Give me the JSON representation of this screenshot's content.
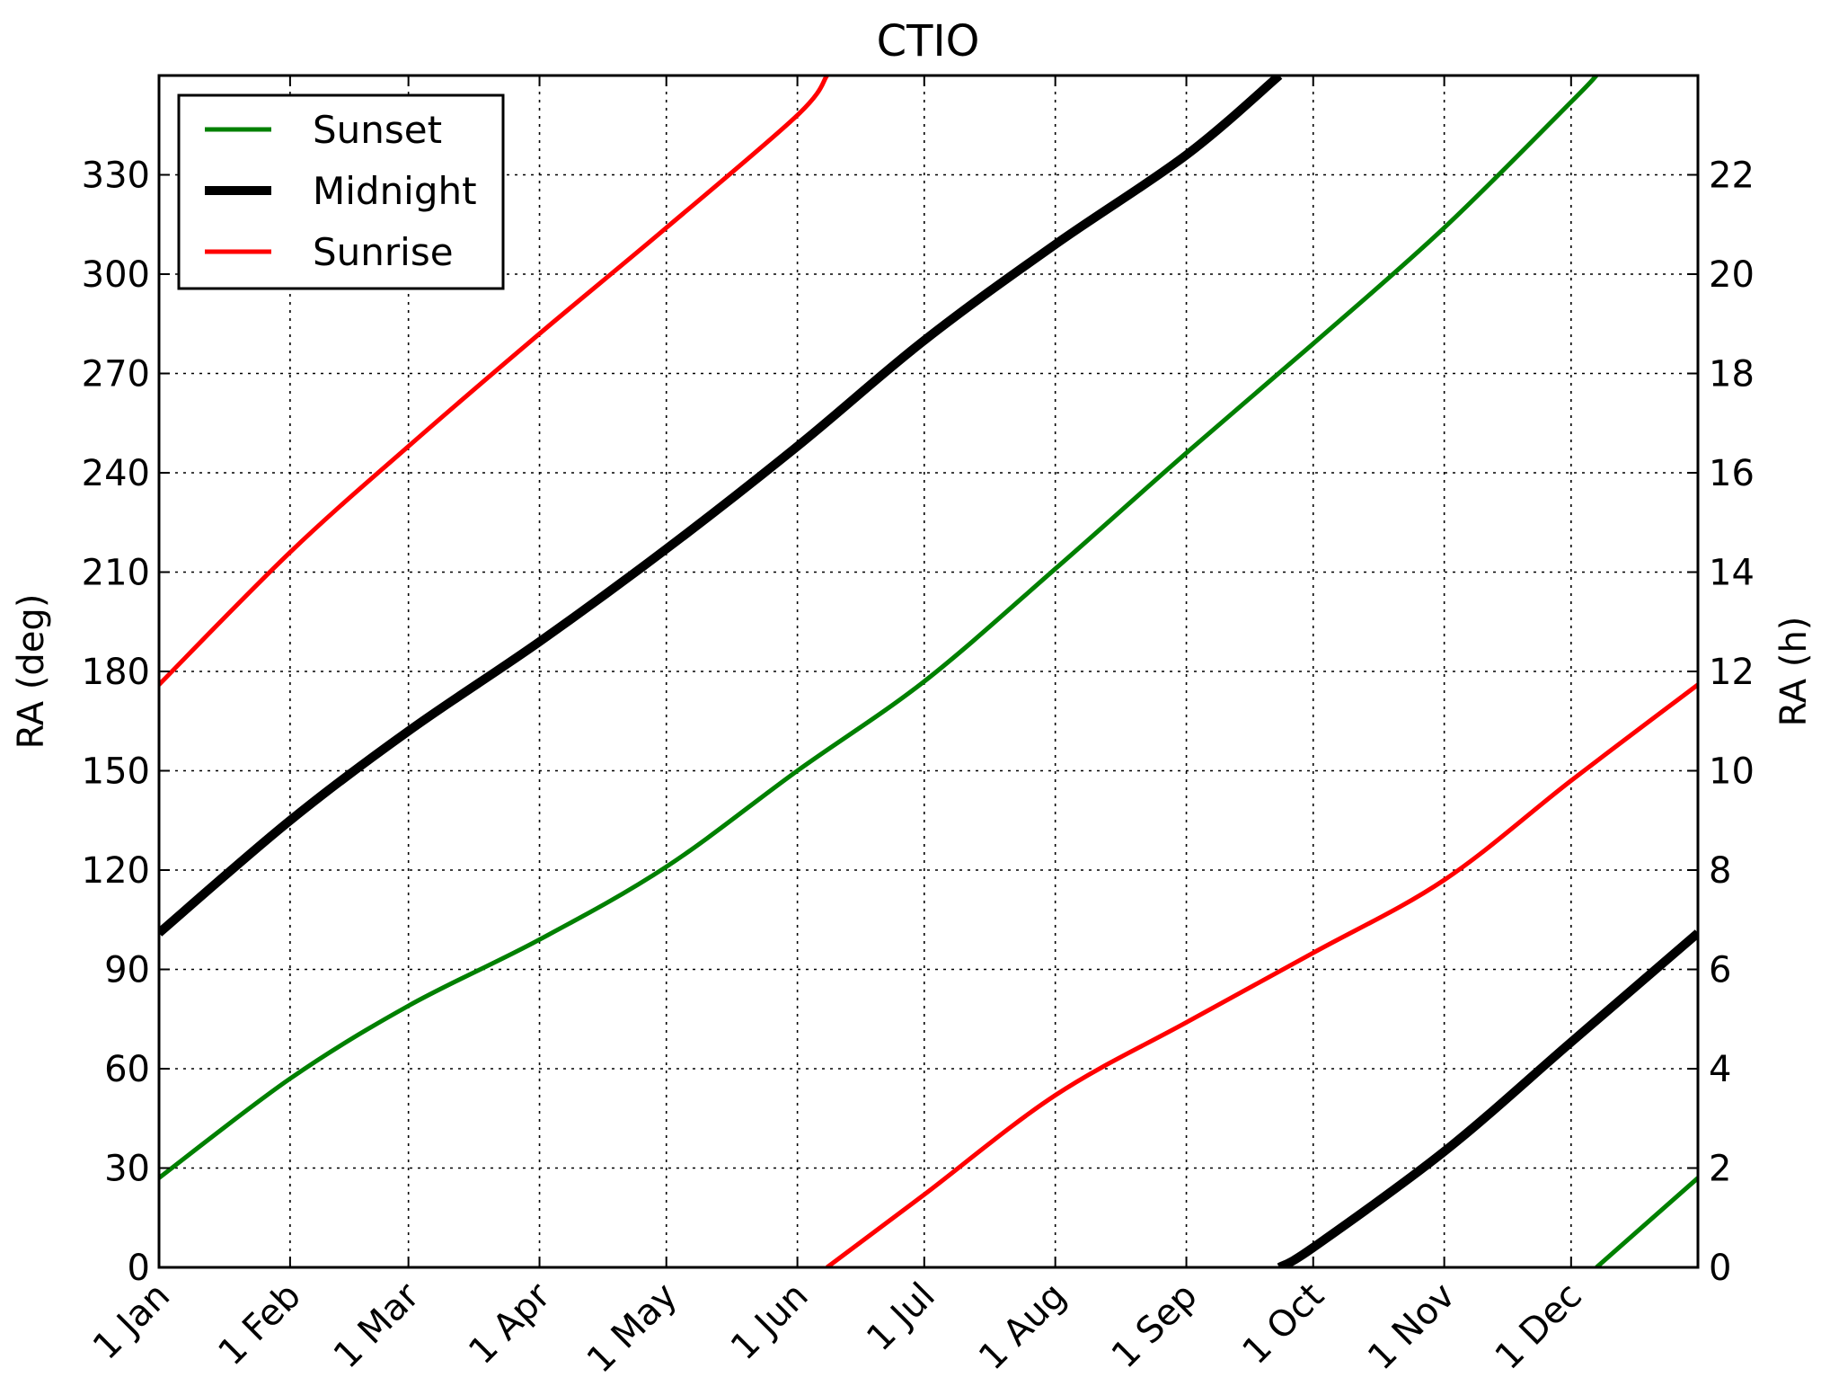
{
  "chart_data": {
    "type": "line",
    "title": "CTIO",
    "ylabel": "RA (deg)",
    "ylabel_right": "RA (h)",
    "xlim": [
      "2014-01-01",
      "2014-12-31"
    ],
    "ylim": [
      0,
      360
    ],
    "ylim_right": [
      0,
      24
    ],
    "grid": true,
    "legend_position": "upper-left",
    "x_ticks": [
      {
        "date": "2014-01-01",
        "label": "1 Jan"
      },
      {
        "date": "2014-02-01",
        "label": "1 Feb"
      },
      {
        "date": "2014-03-01",
        "label": "1 Mar"
      },
      {
        "date": "2014-04-01",
        "label": "1 Apr"
      },
      {
        "date": "2014-05-01",
        "label": "1 May"
      },
      {
        "date": "2014-06-01",
        "label": "1 Jun"
      },
      {
        "date": "2014-07-01",
        "label": "1 Jul"
      },
      {
        "date": "2014-08-01",
        "label": "1 Aug"
      },
      {
        "date": "2014-09-01",
        "label": "1 Sep"
      },
      {
        "date": "2014-10-01",
        "label": "1 Oct"
      },
      {
        "date": "2014-11-01",
        "label": "1 Nov"
      },
      {
        "date": "2014-12-01",
        "label": "1 Dec"
      }
    ],
    "y_ticks": [
      0,
      30,
      60,
      90,
      120,
      150,
      180,
      210,
      240,
      270,
      300,
      330
    ],
    "y_ticks_right": [
      0,
      2,
      4,
      6,
      8,
      10,
      12,
      14,
      16,
      18,
      20,
      22
    ],
    "series": [
      {
        "name": "Sunset",
        "color": "#008000",
        "width": 5,
        "points": [
          [
            "2014-01-01",
            27
          ],
          [
            "2014-02-01",
            57
          ],
          [
            "2014-03-01",
            79
          ],
          [
            "2014-04-01",
            99
          ],
          [
            "2014-05-01",
            121
          ],
          [
            "2014-06-01",
            150
          ],
          [
            "2014-07-01",
            177
          ],
          [
            "2014-08-01",
            211
          ],
          [
            "2014-09-01",
            246
          ],
          [
            "2014-10-01",
            279
          ],
          [
            "2014-11-01",
            314
          ],
          [
            "2014-12-01",
            352
          ],
          [
            "2014-12-07",
            360
          ],
          [
            "BREAK",
            null
          ],
          [
            "2014-12-07",
            0
          ],
          [
            "2014-12-31",
            27
          ]
        ]
      },
      {
        "name": "Midnight",
        "color": "#000000",
        "width": 10,
        "points": [
          [
            "2014-01-01",
            101
          ],
          [
            "2014-02-01",
            135
          ],
          [
            "2014-03-01",
            162
          ],
          [
            "2014-04-01",
            189
          ],
          [
            "2014-05-01",
            217
          ],
          [
            "2014-06-01",
            248
          ],
          [
            "2014-07-01",
            280
          ],
          [
            "2014-08-01",
            309
          ],
          [
            "2014-09-01",
            336
          ],
          [
            "2014-09-23",
            360
          ],
          [
            "BREAK",
            null
          ],
          [
            "2014-09-23",
            0
          ],
          [
            "2014-10-01",
            6
          ],
          [
            "2014-11-01",
            35
          ],
          [
            "2014-12-01",
            68
          ],
          [
            "2014-12-31",
            101
          ]
        ]
      },
      {
        "name": "Sunrise",
        "color": "#ff0000",
        "width": 5,
        "points": [
          [
            "2014-01-01",
            176
          ],
          [
            "2014-02-01",
            216
          ],
          [
            "2014-03-01",
            248
          ],
          [
            "2014-04-01",
            282
          ],
          [
            "2014-05-01",
            314
          ],
          [
            "2014-06-01",
            348
          ],
          [
            "2014-06-08",
            360
          ],
          [
            "BREAK",
            null
          ],
          [
            "2014-06-08",
            0
          ],
          [
            "2014-07-01",
            22
          ],
          [
            "2014-08-01",
            52
          ],
          [
            "2014-09-01",
            74
          ],
          [
            "2014-10-01",
            95
          ],
          [
            "2014-11-01",
            117
          ],
          [
            "2014-12-01",
            147
          ],
          [
            "2014-12-31",
            176
          ]
        ]
      }
    ]
  }
}
